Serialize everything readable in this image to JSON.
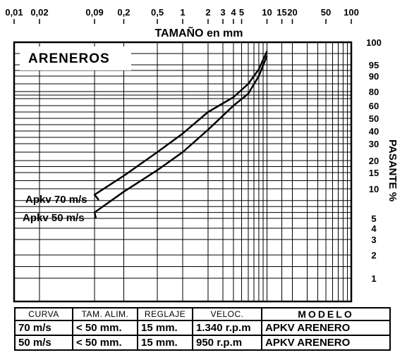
{
  "chart_data": {
    "type": "line",
    "title": "ARENEROS",
    "xlabel": "TAMAÑO en mm",
    "ylabel": "PASANTE %",
    "x_scale": "log",
    "xlim": [
      0.01,
      100
    ],
    "y_scale": "probability",
    "ylim": [
      1,
      100
    ],
    "grid": true,
    "x_tick_labels": [
      "0,01",
      "0,02",
      "0,09",
      "0,2",
      "0,5",
      "1",
      "2",
      "3",
      "4",
      "5",
      "10",
      "15",
      "20",
      "50",
      "100"
    ],
    "x_tick_values": [
      0.01,
      0.02,
      0.09,
      0.2,
      0.5,
      1,
      2,
      3,
      4,
      5,
      10,
      15,
      20,
      50,
      100
    ],
    "y_tick_labels": [
      "100",
      "95",
      "90",
      "80",
      "60",
      "50",
      "40",
      "30",
      "20",
      "15",
      "10",
      "5",
      "4",
      "3",
      "2",
      "1"
    ],
    "y_tick_values": [
      100,
      95,
      90,
      80,
      60,
      50,
      40,
      30,
      20,
      15,
      10,
      5,
      4,
      3,
      2,
      1
    ],
    "series": [
      {
        "name": "Apkv 70 m/s",
        "x": [
          0.09,
          0.2,
          0.5,
          1,
          2,
          4,
          6,
          8,
          10
        ],
        "y": [
          9,
          14,
          25,
          38,
          55,
          72,
          85,
          93,
          98
        ]
      },
      {
        "name": "Apkv 50 m/s",
        "x": [
          0.09,
          0.2,
          0.5,
          1,
          2,
          4,
          6,
          8,
          10
        ],
        "y": [
          6,
          9.5,
          16,
          25,
          41,
          60,
          77,
          90,
          97
        ]
      }
    ]
  },
  "spec_table": {
    "headers": {
      "curva": "CURVA",
      "tam_alim": "TAM. ALIM.",
      "reglaje": "REGLAJE",
      "veloc": "VELOC.",
      "modelo": "MODELO"
    },
    "rows": [
      {
        "curva": "70 m/s",
        "tam_alim": "< 50 mm.",
        "reglaje": "15 mm.",
        "veloc": "1.340 r.p.m",
        "modelo": "APKV ARENERO"
      },
      {
        "curva": "50 m/s",
        "tam_alim": "< 50 mm.",
        "reglaje": "15 mm.",
        "veloc": "950 r.p.m",
        "modelo": "APKV ARENERO"
      }
    ]
  },
  "colors": {
    "line": "#000000",
    "grid": "#000000",
    "background": "#ffffff"
  }
}
